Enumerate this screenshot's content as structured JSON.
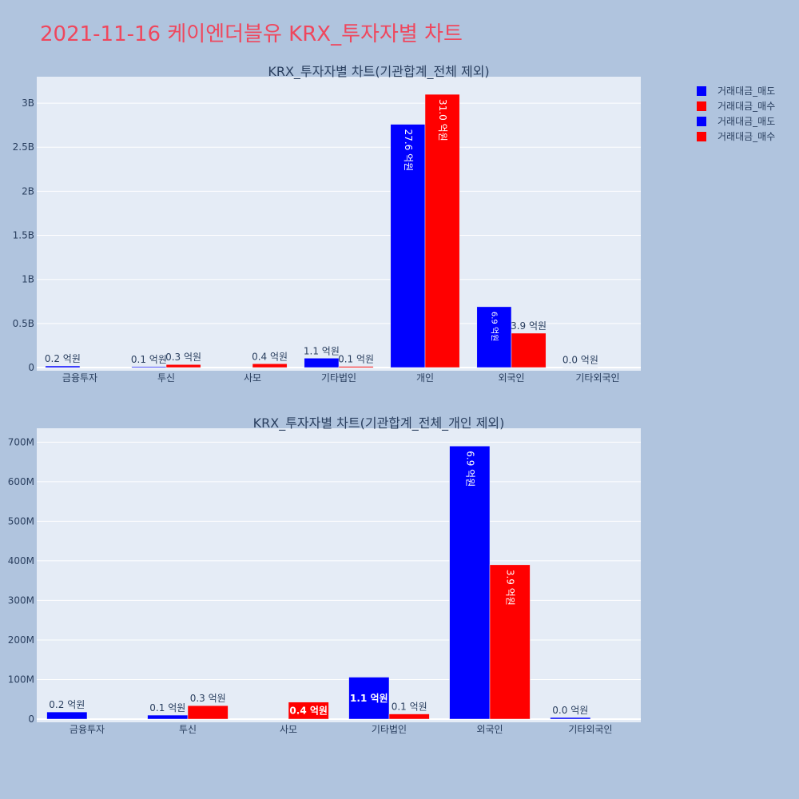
{
  "page_title": "2021-11-16 케이엔더블유 KRX_투자자별 차트",
  "colors": {
    "sell": "#0000ff",
    "buy": "#ff0000",
    "plot_bg": "#e5ecf6",
    "paper_bg": "#b0c4de",
    "title": "#ef475d"
  },
  "legend": [
    {
      "name": "거래대금_매도",
      "color": "#0000ff"
    },
    {
      "name": "거래대금_매수",
      "color": "#ff0000"
    },
    {
      "name": "거래대금_매도",
      "color": "#0000ff"
    },
    {
      "name": "거래대금_매수",
      "color": "#ff0000"
    }
  ],
  "chart_data": [
    {
      "type": "bar",
      "title": "KRX_투자자별 차트(기관합계_전체 제외)",
      "categories": [
        "금융투자",
        "투신",
        "사모",
        "기타법인",
        "개인",
        "외국인",
        "기타외국인"
      ],
      "series": [
        {
          "name": "거래대금_매도",
          "color": "#0000ff",
          "values": [
            18000000,
            10000000,
            0,
            106000000,
            2760000000,
            690000000,
            4000000
          ],
          "labels": [
            "0.2 억원",
            "0.1 억원",
            "",
            "1.1 억원",
            "27.6 억원",
            "6.9 억원",
            "0.0 억원"
          ]
        },
        {
          "name": "거래대금_매수",
          "color": "#ff0000",
          "values": [
            0,
            34000000,
            43000000,
            13000000,
            3100000000,
            390000000,
            0
          ],
          "labels": [
            "",
            "0.3 억원",
            "0.4 억원",
            "0.1 억원",
            "31.0 억원",
            "3.9 억원",
            ""
          ]
        }
      ],
      "yticks": [
        0,
        500000000,
        1000000000,
        1500000000,
        2000000000,
        2500000000,
        3000000000
      ],
      "ytick_labels": [
        "0",
        "0.5B",
        "1B",
        "1.5B",
        "2B",
        "2.5B",
        "3B"
      ],
      "ylim": [
        0,
        3300000000
      ],
      "grid": true
    },
    {
      "type": "bar",
      "title": "KRX_투자자별 차트(기관합계_전체_개인 제외)",
      "categories": [
        "금융투자",
        "투신",
        "사모",
        "기타법인",
        "외국인",
        "기타외국인"
      ],
      "series": [
        {
          "name": "거래대금_매도",
          "color": "#0000ff",
          "values": [
            18000000,
            10000000,
            0,
            106000000,
            690000000,
            4000000
          ],
          "labels": [
            "0.2 억원",
            "0.1 억원",
            "",
            "1.1 억원",
            "6.9 억원",
            "0.0 억원"
          ]
        },
        {
          "name": "거래대금_매수",
          "color": "#ff0000",
          "values": [
            0,
            34000000,
            43000000,
            13000000,
            390000000,
            0
          ],
          "labels": [
            "",
            "0.3 억원",
            "0.4 억원",
            "0.1 억원",
            "3.9 억원",
            ""
          ]
        }
      ],
      "yticks": [
        0,
        100000000,
        200000000,
        300000000,
        400000000,
        500000000,
        600000000,
        700000000
      ],
      "ytick_labels": [
        "0",
        "100M",
        "200M",
        "300M",
        "400M",
        "500M",
        "600M",
        "700M"
      ],
      "ylim": [
        0,
        735000000
      ],
      "grid": true
    }
  ]
}
